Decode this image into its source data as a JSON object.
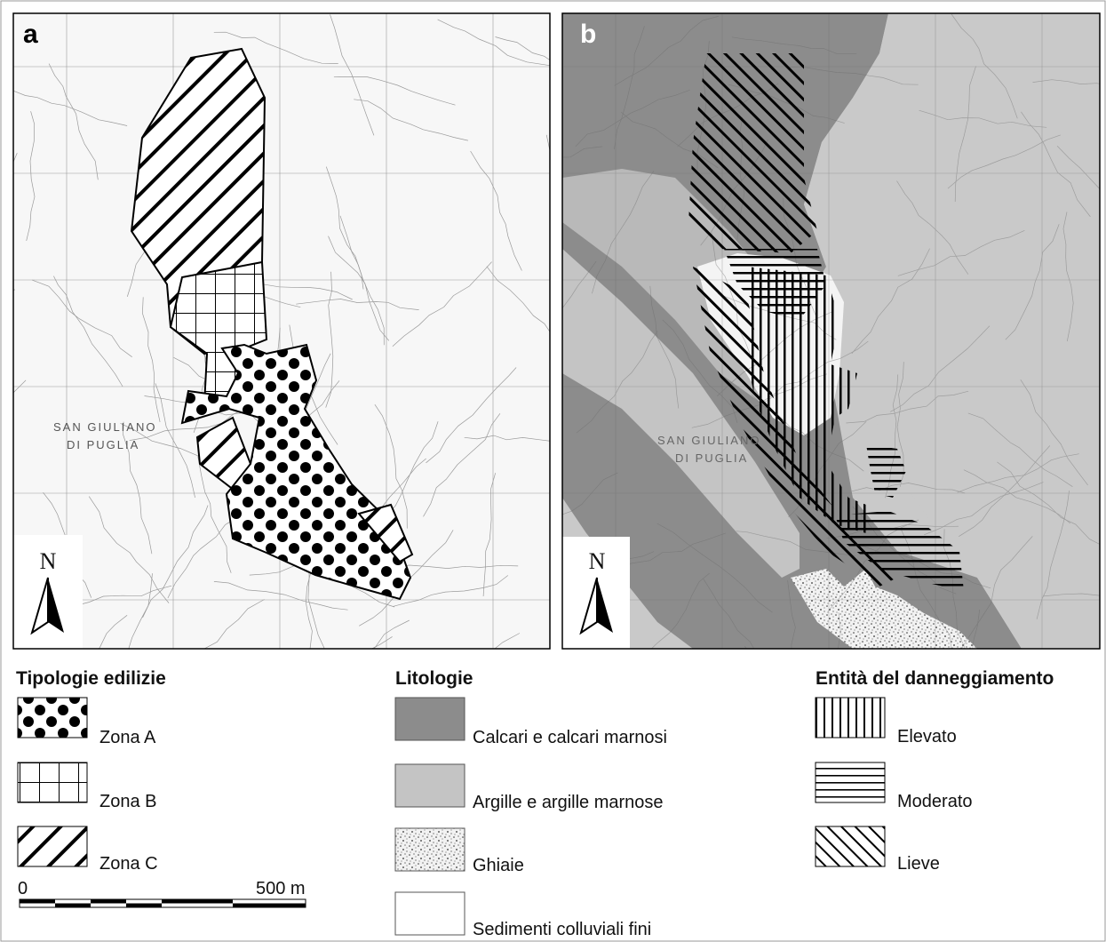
{
  "panels": [
    {
      "label": "a",
      "north": "N"
    },
    {
      "label": "b",
      "north": "N"
    }
  ],
  "town_label": [
    "SAN GIULIANO",
    "DI PUGLIA"
  ],
  "legends": [
    {
      "title": "Tipologie edilizie",
      "items": [
        "Zona A",
        "Zona B",
        "Zona C"
      ]
    },
    {
      "title": "Litologie",
      "items": [
        "Calcari e calcari marnosi",
        "Argille e argille marnose",
        "Ghiaie",
        "Sedimenti colluviali fini"
      ]
    },
    {
      "title": "Entità del danneggiamento",
      "items": [
        "Elevato",
        "Moderato",
        "Lieve"
      ]
    }
  ],
  "scale_bar": {
    "start": "0",
    "end": "500 m"
  }
}
